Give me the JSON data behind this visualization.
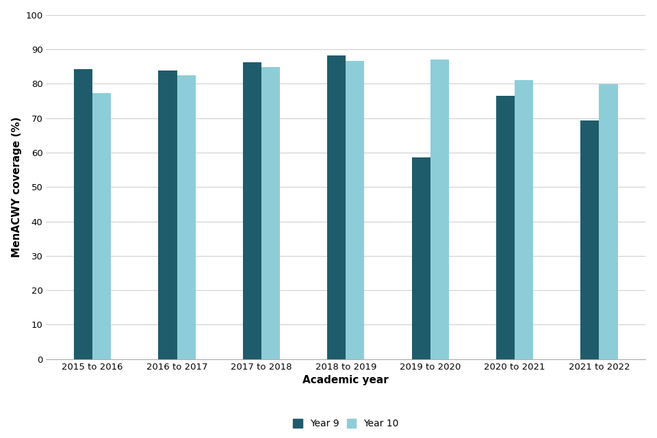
{
  "categories": [
    "2015 to 2016",
    "2016 to 2017",
    "2017 to 2018",
    "2018 to 2019",
    "2019 to 2020",
    "2020 to 2021",
    "2021 to 2022"
  ],
  "year9_values": [
    84.2,
    83.8,
    86.3,
    88.2,
    58.6,
    76.4,
    69.3
  ],
  "year10_values": [
    77.3,
    82.5,
    84.8,
    86.7,
    87.0,
    81.0,
    79.8
  ],
  "year9_color": "#1f5c6b",
  "year10_color": "#8dcdd8",
  "xlabel": "Academic year",
  "ylabel": "MenACWY coverage (%)",
  "ylim": [
    0,
    100
  ],
  "yticks": [
    0,
    10,
    20,
    30,
    40,
    50,
    60,
    70,
    80,
    90,
    100
  ],
  "legend_labels": [
    "Year 9",
    "Year 10"
  ],
  "bar_width": 0.22,
  "background_color": "#ffffff",
  "grid_color": "#d0d0d0",
  "tick_fontsize": 9.5,
  "label_fontsize": 11,
  "legend_fontsize": 10
}
